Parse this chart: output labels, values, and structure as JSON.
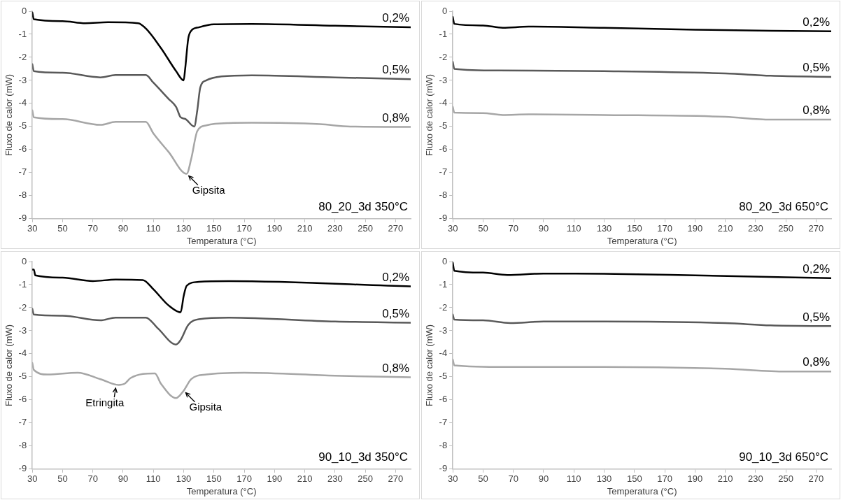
{
  "chart_data": [
    {
      "type": "line",
      "title": "80_20_3d 350°C",
      "xlabel": "Temperatura (°C)",
      "ylabel": "Fluxo de calor (mW)",
      "xlim": [
        30,
        280
      ],
      "xticks": [
        30,
        50,
        70,
        90,
        110,
        130,
        150,
        170,
        190,
        210,
        230,
        250,
        270
      ],
      "ylim": [
        -9,
        0
      ],
      "yticks": [
        -9,
        -8,
        -7,
        -6,
        -5,
        -4,
        -3,
        -2,
        -1,
        0
      ],
      "grid": false,
      "marker": "none",
      "line_style": "solid",
      "annotations": [
        {
          "text": "Gipsita",
          "x": 132,
          "y": -7.05
        }
      ],
      "series": [
        {
          "name": "0,2%",
          "color": "#000000",
          "x": [
            30,
            31,
            50,
            65,
            80,
            100,
            105,
            115,
            125,
            130,
            131,
            133,
            135,
            140,
            150,
            175,
            230,
            280
          ],
          "values": [
            -0.05,
            -0.35,
            -0.43,
            -0.52,
            -0.48,
            -0.52,
            -0.75,
            -1.6,
            -2.6,
            -3.0,
            -2.5,
            -1.2,
            -0.85,
            -0.7,
            -0.57,
            -0.55,
            -0.63,
            -0.7
          ]
        },
        {
          "name": "0,5%",
          "color": "#595959",
          "x": [
            30,
            31,
            50,
            75,
            85,
            105,
            110,
            120,
            125,
            128,
            131,
            137,
            139,
            141,
            145,
            155,
            175,
            230,
            280
          ],
          "values": [
            -2.3,
            -2.6,
            -2.67,
            -2.87,
            -2.77,
            -2.77,
            -3.1,
            -3.8,
            -4.15,
            -4.6,
            -4.67,
            -5.0,
            -4.3,
            -3.3,
            -3.0,
            -2.83,
            -2.78,
            -2.87,
            -2.95
          ]
        },
        {
          "name": "0,8%",
          "color": "#a6a6a6",
          "x": [
            30,
            31,
            50,
            75,
            85,
            105,
            110,
            120,
            132,
            135,
            139,
            145,
            160,
            175,
            220,
            240,
            280
          ],
          "values": [
            -4.3,
            -4.6,
            -4.68,
            -4.93,
            -4.8,
            -4.8,
            -5.3,
            -6.1,
            -7.05,
            -6.4,
            -5.2,
            -4.95,
            -4.85,
            -4.84,
            -4.9,
            -5.0,
            -5.02
          ]
        }
      ]
    },
    {
      "type": "line",
      "title": "80_20_3d 650°C",
      "xlabel": "Temperatura (°C)",
      "ylabel": "Fluxo de calor (mW)",
      "xlim": [
        30,
        280
      ],
      "xticks": [
        30,
        50,
        70,
        90,
        110,
        130,
        150,
        170,
        190,
        210,
        230,
        250,
        270
      ],
      "ylim": [
        -9,
        0
      ],
      "yticks": [
        -9,
        -8,
        -7,
        -6,
        -5,
        -4,
        -3,
        -2,
        -1,
        0
      ],
      "grid": false,
      "marker": "none",
      "line_style": "solid",
      "series": [
        {
          "name": "0,2%",
          "color": "#000000",
          "x": [
            30,
            31,
            50,
            63,
            80,
            130,
            190,
            240,
            280
          ],
          "values": [
            -0.25,
            -0.55,
            -0.62,
            -0.72,
            -0.67,
            -0.72,
            -0.8,
            -0.85,
            -0.87
          ]
        },
        {
          "name": "0,5%",
          "color": "#595959",
          "x": [
            30,
            31,
            60,
            130,
            210,
            240,
            280
          ],
          "values": [
            -2.2,
            -2.5,
            -2.57,
            -2.6,
            -2.7,
            -2.8,
            -2.85
          ]
        },
        {
          "name": "0,8%",
          "color": "#a6a6a6",
          "x": [
            30,
            31,
            50,
            63,
            80,
            130,
            210,
            240,
            280
          ],
          "values": [
            -4.15,
            -4.4,
            -4.42,
            -4.5,
            -4.47,
            -4.5,
            -4.58,
            -4.7,
            -4.7
          ]
        }
      ]
    },
    {
      "type": "line",
      "title": "90_10_3d 350°C",
      "xlabel": "Temperatura (°C)",
      "ylabel": "Fluxo de calor (mW)",
      "xlim": [
        30,
        280
      ],
      "xticks": [
        30,
        50,
        70,
        90,
        110,
        130,
        150,
        170,
        190,
        210,
        230,
        250,
        270
      ],
      "ylim": [
        -9,
        0
      ],
      "yticks": [
        -9,
        -8,
        -7,
        -6,
        -5,
        -4,
        -3,
        -2,
        -1,
        0
      ],
      "grid": false,
      "marker": "none",
      "line_style": "solid",
      "annotations": [
        {
          "text": "Etringita",
          "x": 86,
          "y": -5.4
        },
        {
          "text": "Gipsita",
          "x": 130,
          "y": -5.6
        }
      ],
      "series": [
        {
          "name": "0,2%",
          "color": "#000000",
          "x": [
            30,
            31,
            32,
            50,
            70,
            85,
            103,
            110,
            120,
            128,
            130,
            132,
            140,
            160,
            280
          ],
          "values": [
            -0.35,
            -0.35,
            -0.6,
            -0.7,
            -0.85,
            -0.78,
            -0.8,
            -1.2,
            -1.9,
            -2.2,
            -1.5,
            -1.05,
            -0.88,
            -0.85,
            -1.08
          ]
        },
        {
          "name": "0,5%",
          "color": "#595959",
          "x": [
            30,
            31,
            50,
            75,
            85,
            105,
            113,
            125,
            128,
            133,
            140,
            160,
            230,
            280
          ],
          "values": [
            -2.05,
            -2.3,
            -2.35,
            -2.55,
            -2.43,
            -2.43,
            -2.9,
            -3.6,
            -3.4,
            -2.75,
            -2.5,
            -2.43,
            -2.6,
            -2.65
          ]
        },
        {
          "name": "0,8%",
          "color": "#a6a6a6",
          "x": [
            30,
            31,
            40,
            60,
            75,
            87,
            91,
            95,
            111,
            115,
            125,
            130,
            135,
            145,
            170,
            230,
            280
          ],
          "values": [
            -4.4,
            -4.7,
            -4.9,
            -4.82,
            -5.1,
            -5.35,
            -5.3,
            -5.05,
            -4.85,
            -5.3,
            -5.92,
            -5.6,
            -5.1,
            -4.9,
            -4.82,
            -4.95,
            -5.02
          ]
        }
      ]
    },
    {
      "type": "line",
      "title": "90_10_3d 650°C",
      "xlabel": "Temperatura (°C)",
      "ylabel": "Fluxo de calor (mW)",
      "xlim": [
        30,
        280
      ],
      "xticks": [
        30,
        50,
        70,
        90,
        110,
        130,
        150,
        170,
        190,
        210,
        230,
        250,
        270
      ],
      "ylim": [
        -9,
        0
      ],
      "yticks": [
        -9,
        -8,
        -7,
        -6,
        -5,
        -4,
        -3,
        -2,
        -1,
        0
      ],
      "grid": false,
      "marker": "none",
      "line_style": "solid",
      "series": [
        {
          "name": "0,2%",
          "color": "#000000",
          "x": [
            30,
            31,
            50,
            66,
            90,
            130,
            190,
            280
          ],
          "values": [
            -0.05,
            -0.4,
            -0.48,
            -0.58,
            -0.52,
            -0.53,
            -0.6,
            -0.72
          ]
        },
        {
          "name": "0,5%",
          "color": "#595959",
          "x": [
            30,
            31,
            50,
            68,
            90,
            130,
            210,
            240,
            280
          ],
          "values": [
            -2.3,
            -2.52,
            -2.55,
            -2.67,
            -2.6,
            -2.6,
            -2.67,
            -2.77,
            -2.8
          ]
        },
        {
          "name": "0,8%",
          "color": "#a6a6a6",
          "x": [
            30,
            31,
            65,
            130,
            210,
            250,
            280
          ],
          "values": [
            -4.25,
            -4.5,
            -4.57,
            -4.57,
            -4.65,
            -4.77,
            -4.77
          ]
        }
      ]
    }
  ]
}
